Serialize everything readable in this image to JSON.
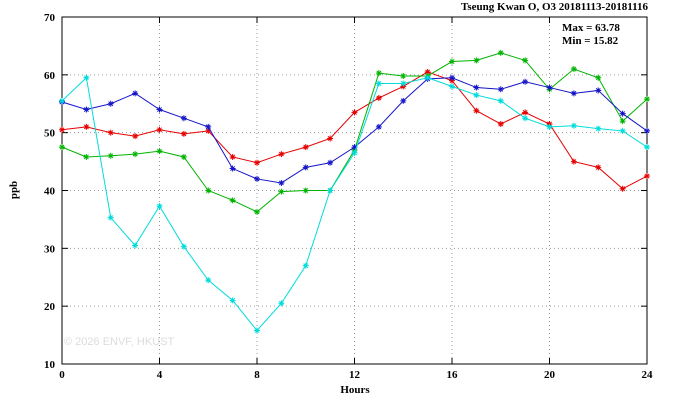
{
  "chart": {
    "title": "Tseung Kwan O, O3 20181113-20181116",
    "annotations": {
      "max": "Max = 63.78",
      "min": "Min = 15.82"
    },
    "xlabel": "Hours",
    "ylabel": "ppb",
    "watermark": "© 2026 ENVF, HKUST"
  },
  "chart_data": {
    "type": "line",
    "title": "Tseung Kwan O, O3 20181113-20181116",
    "xlabel": "Hours",
    "ylabel": "ppb",
    "xlim": [
      0,
      24
    ],
    "ylim": [
      10,
      70
    ],
    "xticks": [
      0,
      4,
      8,
      12,
      16,
      20,
      24
    ],
    "yticks": [
      10,
      20,
      30,
      40,
      50,
      60,
      70
    ],
    "grid": true,
    "legend": "none",
    "max": 63.78,
    "min": 15.82,
    "x": [
      0,
      1,
      2,
      3,
      4,
      5,
      6,
      7,
      8,
      9,
      10,
      11,
      12,
      13,
      14,
      15,
      16,
      17,
      18,
      19,
      20,
      21,
      22,
      23,
      24
    ],
    "series": [
      {
        "name": "red-series",
        "color": "#e60000",
        "values": [
          50.5,
          51.0,
          50.0,
          49.4,
          50.5,
          49.8,
          50.3,
          45.8,
          44.8,
          46.3,
          47.5,
          49.0,
          53.5,
          56.0,
          58.0,
          60.5,
          59.0,
          53.8,
          51.5,
          53.5,
          51.5,
          45.0,
          44.0,
          40.3,
          42.5
        ]
      },
      {
        "name": "green-series",
        "color": "#00b400",
        "values": [
          47.5,
          45.8,
          46.0,
          46.3,
          46.8,
          45.8,
          40.0,
          38.3,
          36.3,
          39.8,
          40.0,
          40.0,
          47.0,
          60.3,
          59.8,
          59.8,
          62.3,
          62.5,
          63.8,
          62.5,
          57.5,
          61.0,
          59.5,
          52.0,
          55.8
        ]
      },
      {
        "name": "blue-series",
        "color": "#1515c8",
        "values": [
          55.3,
          54.0,
          55.0,
          56.8,
          54.0,
          52.5,
          51.0,
          43.8,
          42.0,
          41.3,
          44.0,
          44.8,
          47.5,
          51.0,
          55.5,
          59.3,
          59.5,
          57.8,
          57.5,
          58.8,
          57.8,
          56.8,
          57.3,
          53.3,
          50.3
        ]
      },
      {
        "name": "cyan-series",
        "color": "#00dcdc",
        "values": [
          55.5,
          59.5,
          35.3,
          30.5,
          37.3,
          30.3,
          24.5,
          21.0,
          15.8,
          20.5,
          27.0,
          40.0,
          46.5,
          58.5,
          58.5,
          59.5,
          58.0,
          56.5,
          55.5,
          52.5,
          51.0,
          51.2,
          50.7,
          50.3,
          47.5
        ]
      }
    ]
  }
}
